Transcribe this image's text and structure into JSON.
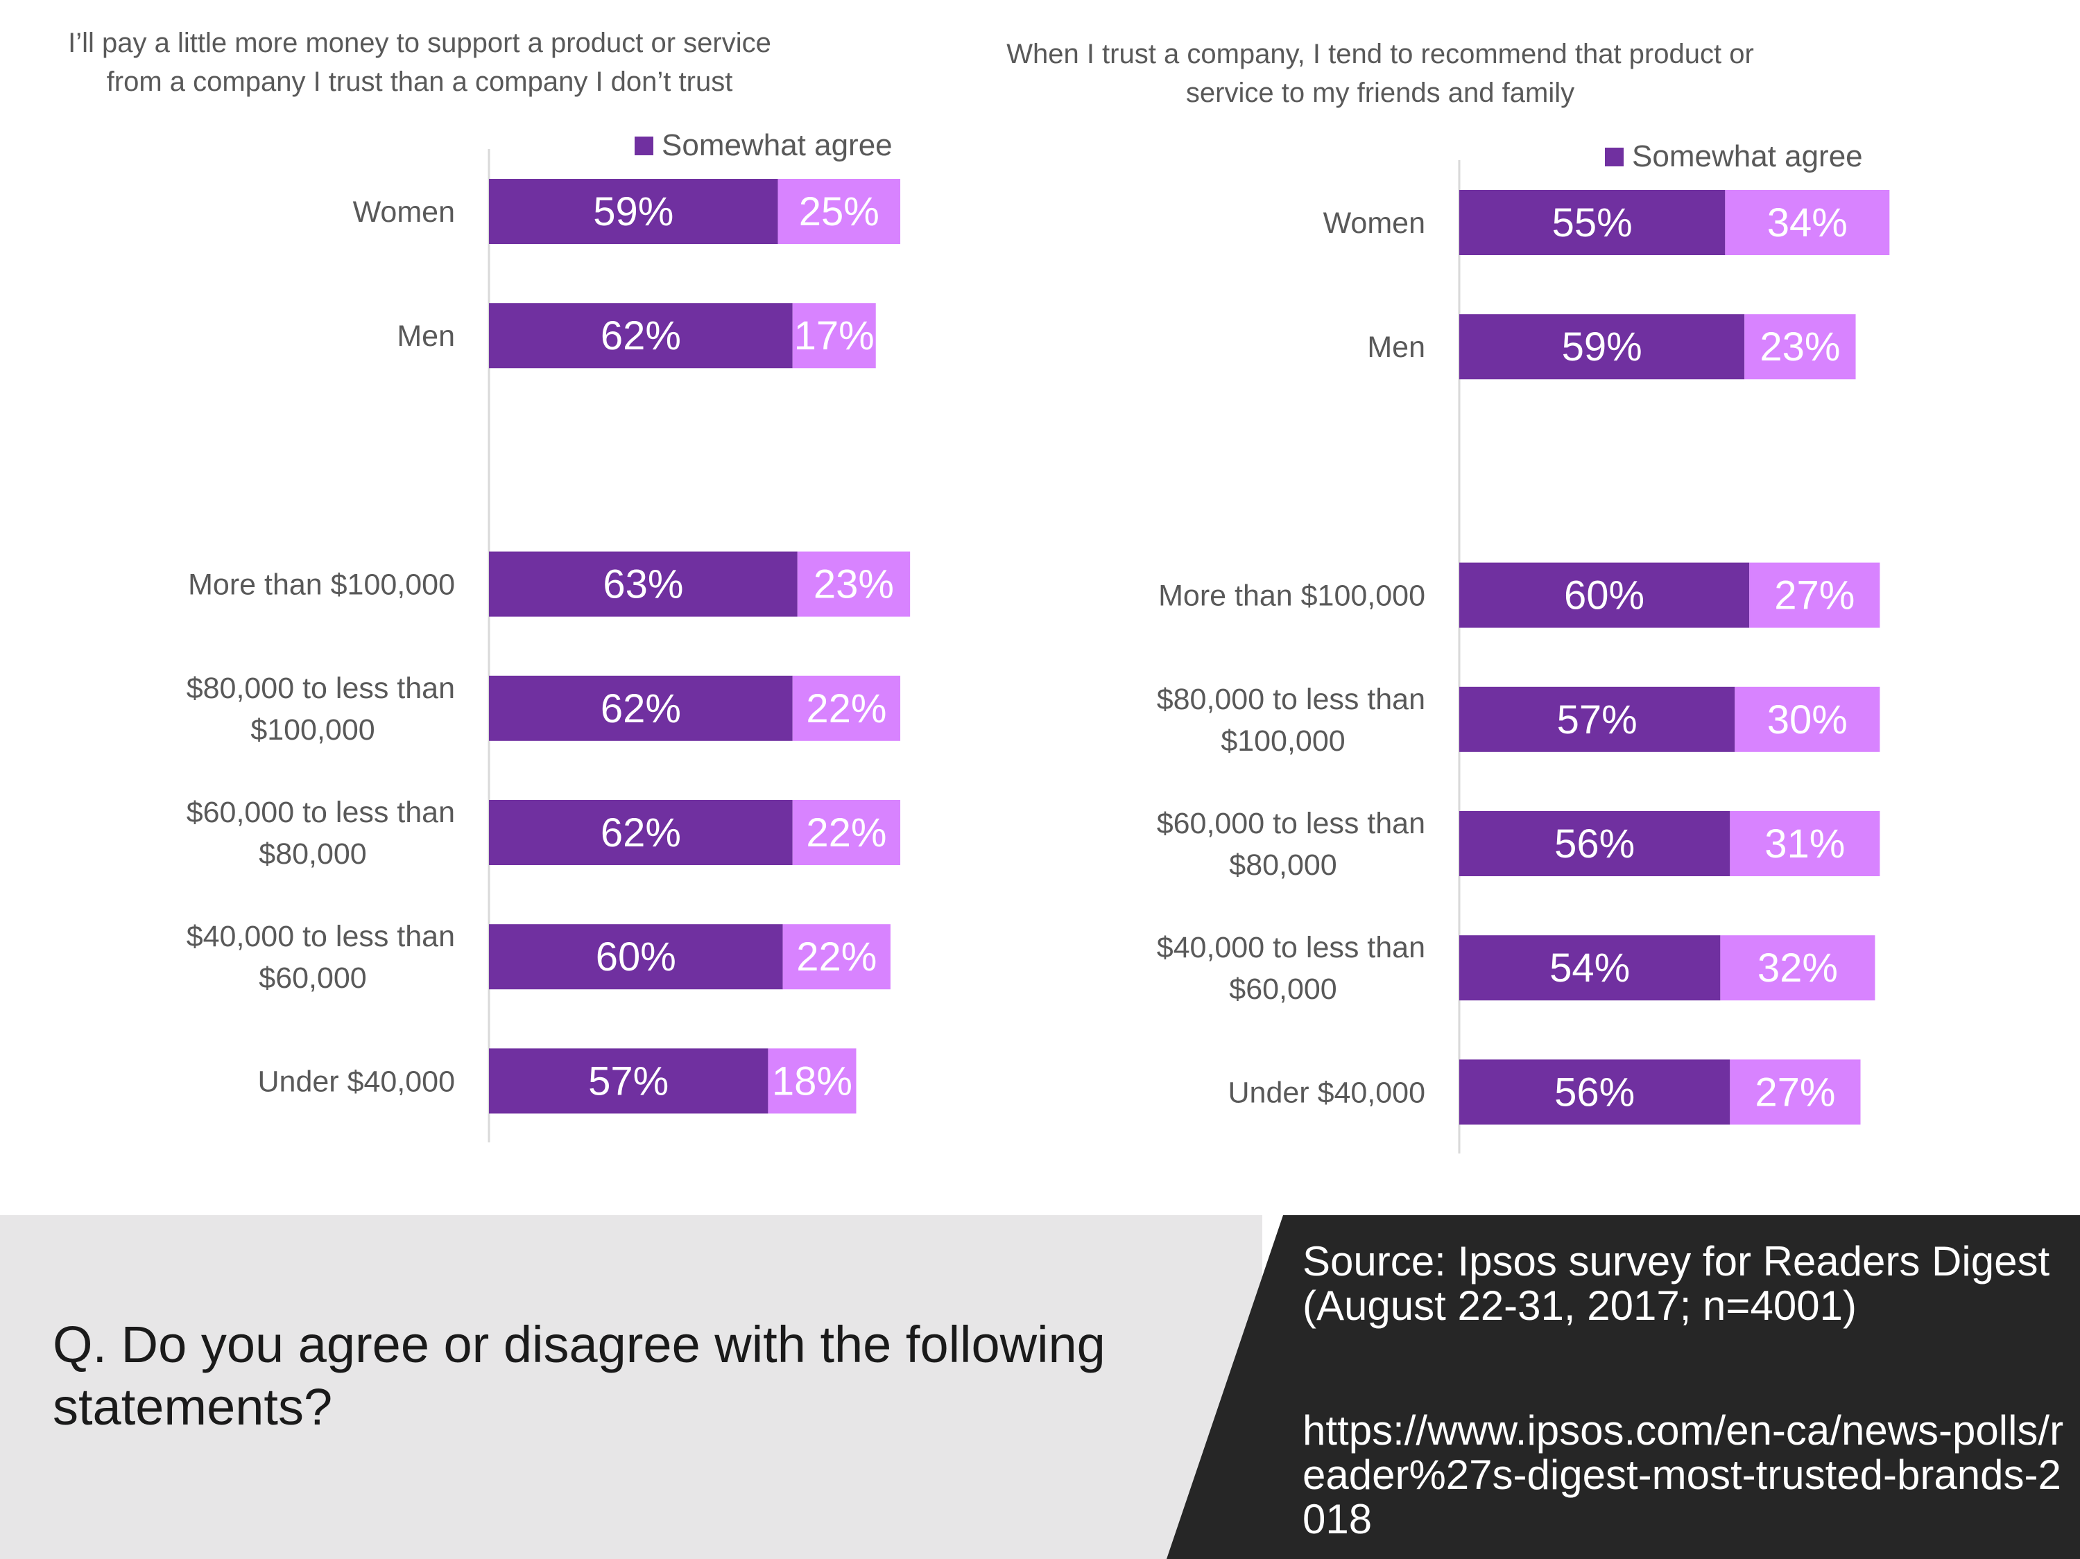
{
  "colors": {
    "strongly_agree": "#7030a0",
    "somewhat_agree": "#d883ff",
    "axis": "#d9d9d9",
    "category_text": "#595959",
    "footer_left_bg": "#e7e6e7",
    "footer_right_bg": "#262626"
  },
  "chart_data": [
    {
      "type": "bar",
      "orientation": "horizontal",
      "stacked": true,
      "title": "I’ll pay a little more money to support a product or service from a company I trust than a company I don’t trust",
      "legend": [
        "Somewhat agree"
      ],
      "legend_position": "top-right",
      "categories": [
        "Women",
        "Men",
        "",
        "More than $100,000",
        "$80,000 to less than $100,000",
        "$60,000 to less than $80,000",
        "$40,000 to less than $60,000",
        "Under $40,000"
      ],
      "series": [
        {
          "values": [
            59,
            62,
            null,
            63,
            62,
            62,
            60,
            57
          ],
          "labels": [
            "59%",
            "62%",
            "",
            "63%",
            "62%",
            "62%",
            "60%",
            "57%"
          ]
        },
        {
          "name": "Somewhat agree",
          "values": [
            25,
            17,
            null,
            23,
            22,
            22,
            22,
            18
          ],
          "labels": [
            "25%",
            "17%",
            "",
            "23%",
            "22%",
            "22%",
            "22%",
            "18%"
          ]
        }
      ],
      "xlim": [
        0,
        100
      ]
    },
    {
      "type": "bar",
      "orientation": "horizontal",
      "stacked": true,
      "title": "When I trust a company, I tend to recommend that product or service to my friends and family",
      "legend": [
        "Somewhat agree"
      ],
      "legend_position": "top-right",
      "categories": [
        "Women",
        "Men",
        "",
        "More than $100,000",
        "$80,000 to less than $100,000",
        "$60,000 to less than $80,000",
        "$40,000 to less than $60,000",
        "Under $40,000"
      ],
      "series": [
        {
          "values": [
            55,
            59,
            null,
            60,
            57,
            56,
            54,
            56
          ],
          "labels": [
            "55%",
            "59%",
            "",
            "60%",
            "57%",
            "56%",
            "54%",
            "56%"
          ]
        },
        {
          "name": "Somewhat agree",
          "values": [
            34,
            23,
            null,
            27,
            30,
            31,
            32,
            27
          ],
          "labels": [
            "34%",
            "23%",
            "",
            "27%",
            "30%",
            "31%",
            "32%",
            "27%"
          ]
        }
      ],
      "xlim": [
        0,
        100
      ]
    }
  ],
  "footer": {
    "question": "Q. Do you agree or disagree with the following statements?",
    "source": "Source:  Ipsos survey for Readers Digest (August 22-31, 2017; n=4001)",
    "link": "https://www.ipsos.com/en-ca/news-polls/reader%27s-digest-most-trusted-brands-2018"
  }
}
